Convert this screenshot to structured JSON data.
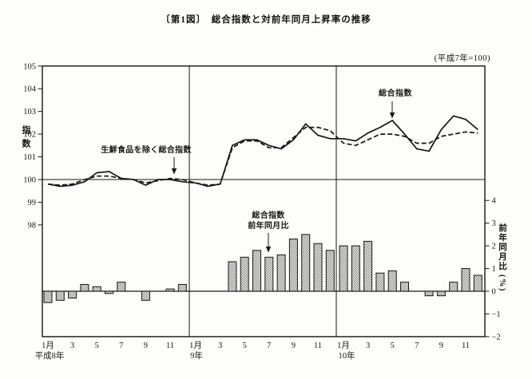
{
  "title": "〔第1図〕　総合指数と対前年同月上昇率の推移",
  "base_note": "(平成7年=100)",
  "axes": {
    "index": {
      "label": "指数",
      "ticks": [
        105,
        104,
        103,
        102,
        101,
        100,
        99,
        98
      ]
    },
    "pct": {
      "label": "前年同月比",
      "unit": "(%)",
      "ticks": [
        4,
        3,
        2,
        1,
        0,
        -1,
        -2
      ]
    },
    "x": {
      "month_labels": [
        "1月",
        "3",
        "5",
        "7",
        "9",
        "11"
      ],
      "year_labels": [
        "平成8年",
        "9年",
        "10年"
      ]
    }
  },
  "annotations": {
    "ex_fresh_line": {
      "text": "生鮮食品を除く総合指数"
    },
    "total_line": {
      "text": "総合指数"
    },
    "total_yoy_bar": {
      "line1": "総合指数",
      "line2": "前年同月比"
    }
  },
  "chart_data": {
    "type": "combo line+bar",
    "title": "総合指数と対前年同月上昇率の推移",
    "base_note": "平成7年=100",
    "x_structure": {
      "years": [
        "平成8年",
        "9年",
        "10年"
      ],
      "months_per_year": 12
    },
    "index_axis": {
      "label": "指数",
      "tick_range": [
        98,
        105
      ],
      "baseline": 100
    },
    "pct_axis": {
      "label": "前年同月比(%)",
      "range": [
        -2,
        4
      ],
      "baseline": 0
    },
    "grid": "three year panels separated by vertical rules; horizontal rules at index 100 and 0%",
    "series": [
      {
        "name": "総合指数",
        "type": "line",
        "style": "solid",
        "axis": "index",
        "values": [
          99.8,
          99.7,
          99.75,
          99.9,
          100.3,
          100.35,
          100.05,
          100.0,
          99.75,
          100.0,
          100.0,
          99.9,
          99.85,
          99.7,
          99.8,
          101.5,
          101.75,
          101.75,
          101.5,
          101.35,
          101.75,
          102.45,
          101.95,
          101.8,
          101.8,
          101.7,
          102.05,
          102.3,
          102.6,
          102.0,
          101.35,
          101.25,
          102.2,
          102.8,
          102.65,
          102.2
        ]
      },
      {
        "name": "生鮮食品を除く総合指数",
        "type": "line",
        "style": "dashed",
        "axis": "index",
        "values": [
          99.8,
          99.75,
          99.8,
          100.0,
          100.15,
          100.15,
          100.05,
          100.0,
          99.85,
          99.95,
          100.05,
          100.0,
          99.85,
          99.75,
          99.8,
          101.4,
          101.7,
          101.7,
          101.4,
          101.4,
          101.85,
          102.3,
          102.3,
          102.15,
          101.6,
          101.5,
          101.75,
          102.0,
          102.0,
          101.9,
          101.6,
          101.6,
          101.9,
          102.0,
          102.1,
          102.05
        ]
      },
      {
        "name": "総合指数前年同月比",
        "type": "bar",
        "axis": "pct",
        "values": [
          -0.5,
          -0.4,
          -0.3,
          0.3,
          0.2,
          -0.1,
          0.4,
          0.0,
          -0.4,
          0.0,
          0.1,
          0.3,
          0.0,
          0.0,
          0.0,
          1.3,
          1.5,
          1.8,
          1.5,
          1.6,
          2.3,
          2.5,
          2.1,
          1.8,
          2.0,
          2.0,
          2.2,
          0.8,
          0.9,
          0.4,
          0.0,
          -0.2,
          -0.2,
          0.4,
          1.0,
          0.7
        ]
      }
    ]
  }
}
